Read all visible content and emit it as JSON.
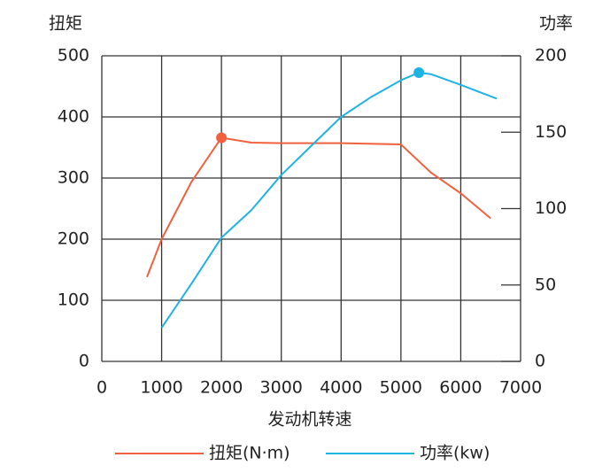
{
  "chart_data": {
    "type": "line",
    "y_label": "扭矩",
    "y2_label": "功率",
    "x_label": "发动机转速",
    "xlim": [
      0,
      7000
    ],
    "xticks": [
      0,
      1000,
      2000,
      3000,
      4000,
      5000,
      6000,
      7000
    ],
    "ylim": [
      0,
      500
    ],
    "yticks": [
      0,
      100,
      200,
      300,
      400,
      500
    ],
    "y2lim": [
      0,
      200
    ],
    "y2ticks": [
      0,
      50,
      100,
      150,
      200
    ],
    "grid": true,
    "legend": "bottom",
    "series": [
      {
        "name": "扭矩(N·m)",
        "color": "#f0613f",
        "marker_at": 2000,
        "x": [
          755,
          1000,
          1500,
          2000,
          2500,
          3000,
          4000,
          5000,
          5500,
          6000,
          6500
        ],
        "values": [
          138,
          200,
          294,
          366,
          358,
          357,
          357,
          355,
          309,
          275,
          234
        ]
      },
      {
        "name": "功率(kw)",
        "color": "#1fb3e3",
        "marker_at": 5300,
        "axis": "y2",
        "x": [
          1000,
          1500,
          2000,
          2500,
          3000,
          3500,
          4000,
          4500,
          5000,
          5300,
          5500,
          6000,
          6600
        ],
        "values": [
          22,
          51,
          81,
          99,
          122,
          141,
          160,
          173,
          184,
          189,
          188,
          181,
          172
        ]
      }
    ]
  }
}
